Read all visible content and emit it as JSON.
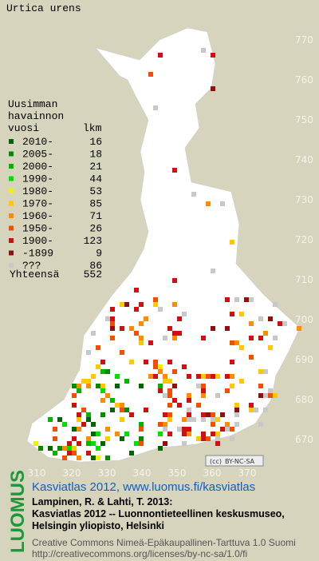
{
  "title": "Urtica urens",
  "legend": {
    "heading": [
      "Uusimman",
      "havainnon",
      "vuosi"
    ],
    "count_heading": "lkm",
    "rows": [
      {
        "label": "2010-",
        "count": 16,
        "color": "#006400"
      },
      {
        "label": "2005-",
        "count": 18,
        "color": "#008c00"
      },
      {
        "label": "2000-",
        "count": 21,
        "color": "#00b400"
      },
      {
        "label": "1990-",
        "count": 44,
        "color": "#00e000"
      },
      {
        "label": "1980-",
        "count": 53,
        "color": "#f0f000"
      },
      {
        "label": "1970-",
        "count": 85,
        "color": "#ffc800"
      },
      {
        "label": "1960-",
        "count": 71,
        "color": "#ff8c00"
      },
      {
        "label": "1950-",
        "count": 26,
        "color": "#f05000"
      },
      {
        "label": "1900-",
        "count": 123,
        "color": "#d01010"
      },
      {
        "label": "-1899",
        "count": 9,
        "color": "#901010"
      },
      {
        "label": "???",
        "count": 86,
        "color": "#c8c8c8"
      }
    ],
    "total_label": "Yhteensä",
    "total": 552
  },
  "x_axis": [
    310,
    320,
    330,
    340,
    350,
    360,
    370
  ],
  "y_axis": [
    770,
    760,
    750,
    740,
    730,
    720,
    710,
    700,
    690,
    680,
    670
  ],
  "license_badge": "BY-NC-SA",
  "logo": "LUOMUS",
  "atlas_title": "Kasviatlas 2012, www.luomus.fi/kasviatlas",
  "citation": [
    "Lampinen, R. & Lahti, T. 2013:",
    "Kasviatlas 2012 -- Luonnontieteellinen keskusmuseo,",
    "Helsingin yliopisto, Helsinki"
  ],
  "license": [
    "Creative Commons Nimeä-Epäkaupallinen-Tarttuva 1.0 Suomi",
    "http://creativecommons.org/licenses/by-nc-sa/1.0/fi"
  ]
}
